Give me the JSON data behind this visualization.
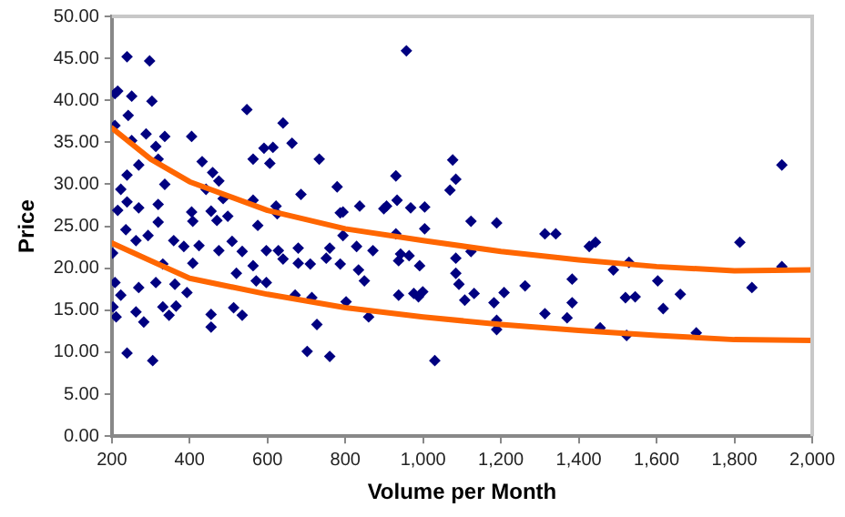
{
  "chart_data": {
    "type": "scatter",
    "xlabel": "Volume per Month",
    "ylabel": "Price",
    "xlim": [
      200,
      2000
    ],
    "xticks": [
      200,
      400,
      600,
      800,
      {
        "value": 1000,
        "label": "1,000"
      },
      {
        "value": 1200,
        "label": "1,200"
      },
      {
        "value": 1400,
        "label": "1,400"
      },
      {
        "value": 1600,
        "label": "1,600"
      },
      {
        "value": 1800,
        "label": "1,800"
      },
      {
        "value": 2000,
        "label": "2,000"
      }
    ],
    "ylim": [
      0,
      50
    ],
    "yticks": [
      {
        "value": 0,
        "label": "0.00"
      },
      {
        "value": 5,
        "label": "5.00"
      },
      {
        "value": 10,
        "label": "10.00"
      },
      {
        "value": 15,
        "label": "15.00"
      },
      {
        "value": 20,
        "label": "20.00"
      },
      {
        "value": 25,
        "label": "25.00"
      },
      {
        "value": 30,
        "label": "30.00"
      },
      {
        "value": 35,
        "label": "35.00"
      },
      {
        "value": 40,
        "label": "40.00"
      },
      {
        "value": 45,
        "label": "45.00"
      },
      {
        "value": 50,
        "label": "50.00"
      }
    ],
    "grid": false,
    "legend": false,
    "marker": "diamond",
    "series": [
      {
        "type": "scatter",
        "color": "#000080",
        "x": [
          239,
          297,
          208,
          215,
          251,
          303,
          242,
          208,
          547,
          640,
          663,
          405,
          288,
          336,
          251,
          313,
          563,
          591,
          614,
          606,
          733,
          432,
          319,
          269,
          239,
          459,
          475,
          336,
          223,
          442,
          779,
          686,
          239,
          486,
          563,
          622,
          215,
          269,
          319,
          405,
          455,
          498,
          625,
          794,
          408,
          470,
          575,
          236,
          319,
          293,
          262,
          359,
          509,
          385,
          424,
          475,
          535,
          597,
          628,
          679,
          760,
          202,
          331,
          408,
          563,
          679,
          710,
          751,
          787,
          520,
          640,
          571,
          208,
          269,
          313,
          362,
          393,
          597,
          223,
          671,
          714,
          802,
          203,
          331,
          365,
          513,
          262,
          347,
          535,
          211,
          455,
          282,
          455,
          727,
          239,
          305,
          702,
          760,
          957,
          1076,
          1084,
          1069,
          930,
          933,
          968,
          1004,
          899,
          906,
          837,
          787,
          1004,
          794,
          1123,
          1189,
          1313,
          1341,
          1427,
          1443,
          829,
          871,
          930,
          942,
          964,
          937,
          991,
          1084,
          1123,
          834,
          849,
          1084,
          1092,
          1107,
          1131,
          937,
          976,
          988,
          999,
          1182,
          1208,
          1262,
          1383,
          1383,
          860,
          1189,
          1189,
          1313,
          1370,
          1455,
          1030,
          1489,
          1529,
          1603,
          1520,
          1545,
          1661,
          1617,
          1523,
          1702,
          1814,
          1845,
          1922,
          1922
        ],
        "values": [
          45.2,
          44.7,
          40.8,
          41.1,
          40.5,
          39.9,
          38.2,
          37.0,
          38.9,
          37.3,
          34.9,
          35.7,
          36.0,
          35.7,
          35.2,
          34.5,
          33.0,
          34.3,
          34.4,
          32.5,
          33.0,
          32.7,
          33.0,
          32.3,
          31.1,
          31.4,
          30.4,
          30.0,
          29.4,
          29.4,
          29.7,
          28.8,
          27.9,
          28.3,
          28.1,
          27.4,
          26.9,
          27.2,
          27.6,
          26.7,
          26.8,
          26.2,
          26.5,
          26.7,
          25.6,
          25.7,
          25.1,
          24.6,
          25.5,
          23.9,
          23.3,
          23.3,
          23.2,
          22.6,
          22.7,
          22.1,
          22.0,
          22.1,
          22.1,
          22.4,
          22.4,
          21.8,
          20.5,
          20.6,
          20.3,
          20.6,
          20.5,
          21.2,
          20.5,
          19.4,
          21.1,
          18.5,
          18.3,
          17.7,
          18.3,
          18.1,
          17.1,
          18.3,
          16.8,
          16.8,
          16.5,
          16.0,
          15.4,
          15.4,
          15.5,
          15.3,
          14.8,
          14.4,
          14.4,
          14.2,
          14.5,
          13.6,
          13.0,
          13.3,
          9.9,
          9.0,
          10.1,
          9.5,
          45.9,
          32.9,
          30.6,
          29.3,
          31.0,
          28.1,
          27.2,
          27.3,
          27.1,
          27.4,
          27.4,
          26.6,
          24.7,
          23.9,
          25.6,
          25.4,
          24.1,
          24.1,
          22.6,
          23.1,
          22.6,
          22.1,
          24.1,
          21.7,
          21.5,
          20.9,
          20.3,
          21.2,
          22.0,
          19.8,
          18.5,
          19.4,
          18.1,
          16.2,
          17.0,
          16.8,
          17.0,
          16.6,
          17.2,
          15.9,
          17.1,
          17.9,
          18.7,
          15.9,
          14.2,
          13.8,
          12.7,
          14.6,
          14.1,
          12.9,
          9.0,
          19.8,
          20.7,
          18.5,
          16.5,
          16.6,
          16.9,
          15.2,
          12.0,
          12.3,
          23.1,
          17.7,
          32.3,
          20.2
        ]
      },
      {
        "type": "line",
        "marker": "none",
        "color": "#ff6600",
        "x": [
          200,
          300,
          400,
          600,
          800,
          1000,
          1200,
          1400,
          1600,
          1800,
          2000
        ],
        "values": [
          36.7,
          33.0,
          30.3,
          26.9,
          24.7,
          23.3,
          22.0,
          21.0,
          20.2,
          19.7,
          19.8
        ]
      },
      {
        "type": "line",
        "marker": "none",
        "color": "#ff6600",
        "x": [
          200,
          300,
          400,
          600,
          800,
          1000,
          1200,
          1400,
          1600,
          1800,
          2000
        ],
        "values": [
          23.0,
          20.9,
          18.8,
          16.9,
          15.3,
          14.2,
          13.3,
          12.6,
          12.0,
          11.5,
          11.4
        ]
      }
    ]
  }
}
